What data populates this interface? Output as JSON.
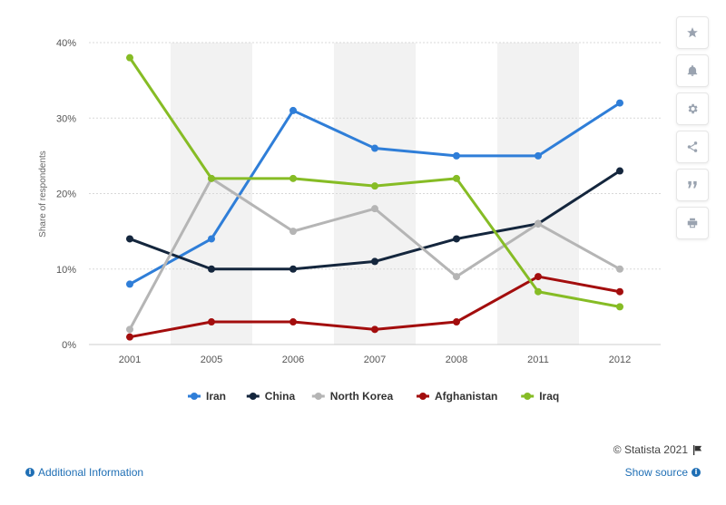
{
  "chart_data": {
    "type": "line",
    "categories": [
      "2001",
      "2005",
      "2006",
      "2007",
      "2008",
      "2011",
      "2012"
    ],
    "series": [
      {
        "name": "Iran",
        "color": "#2f7ed8",
        "values": [
          8,
          14,
          31,
          26,
          25,
          25,
          32
        ]
      },
      {
        "name": "China",
        "color": "#14263d",
        "values": [
          14,
          10,
          10,
          11,
          14,
          16,
          23
        ]
      },
      {
        "name": "North Korea",
        "color": "#b5b5b5",
        "values": [
          2,
          22,
          15,
          18,
          9,
          16,
          10
        ]
      },
      {
        "name": "Afghanistan",
        "color": "#a30d0d",
        "values": [
          1,
          3,
          3,
          2,
          3,
          9,
          7
        ]
      },
      {
        "name": "Iraq",
        "color": "#86bc25",
        "values": [
          38,
          22,
          22,
          21,
          22,
          7,
          5
        ]
      }
    ],
    "ylabel": "Share of respondents",
    "xlabel": "",
    "ylim": [
      0,
      40
    ],
    "yticks": [
      "0%",
      "10%",
      "20%",
      "30%",
      "40%"
    ],
    "grid": true,
    "legend_position": "bottom-center"
  },
  "sidebar": {
    "buttons": [
      {
        "icon": "star-icon"
      },
      {
        "icon": "bell-icon"
      },
      {
        "icon": "gear-icon"
      },
      {
        "icon": "share-icon"
      },
      {
        "icon": "quote-icon"
      },
      {
        "icon": "print-icon"
      }
    ]
  },
  "footer": {
    "credit": "© Statista 2021",
    "additional_info": "Additional Information",
    "show_source": "Show source"
  }
}
